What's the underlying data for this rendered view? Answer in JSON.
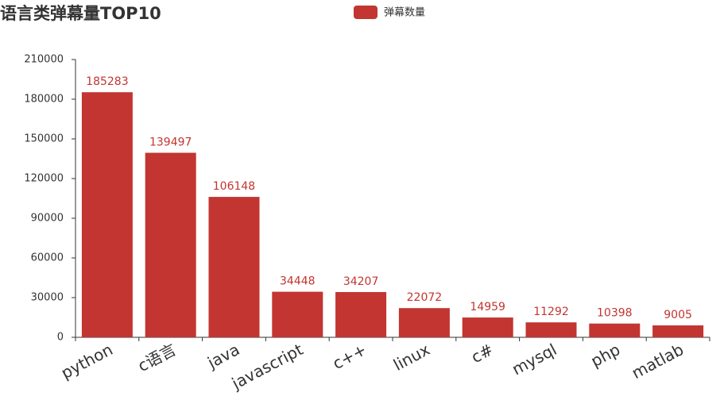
{
  "chart_data": {
    "type": "bar",
    "title": "语言类弹幕量TOP10",
    "categories": [
      "python",
      "c语言",
      "java",
      "javascript",
      "c++",
      "linux",
      "c#",
      "mysql",
      "php",
      "matlab"
    ],
    "series": [
      {
        "name": "弹幕数量",
        "color": "#c23531",
        "values": [
          185283,
          139497,
          106148,
          34448,
          34207,
          22072,
          14959,
          11292,
          10398,
          9005
        ]
      }
    ],
    "ylim": [
      0,
      210000
    ],
    "yticks": [
      0,
      30000,
      60000,
      90000,
      120000,
      150000,
      180000,
      210000
    ],
    "grid": false,
    "legend": "top"
  }
}
